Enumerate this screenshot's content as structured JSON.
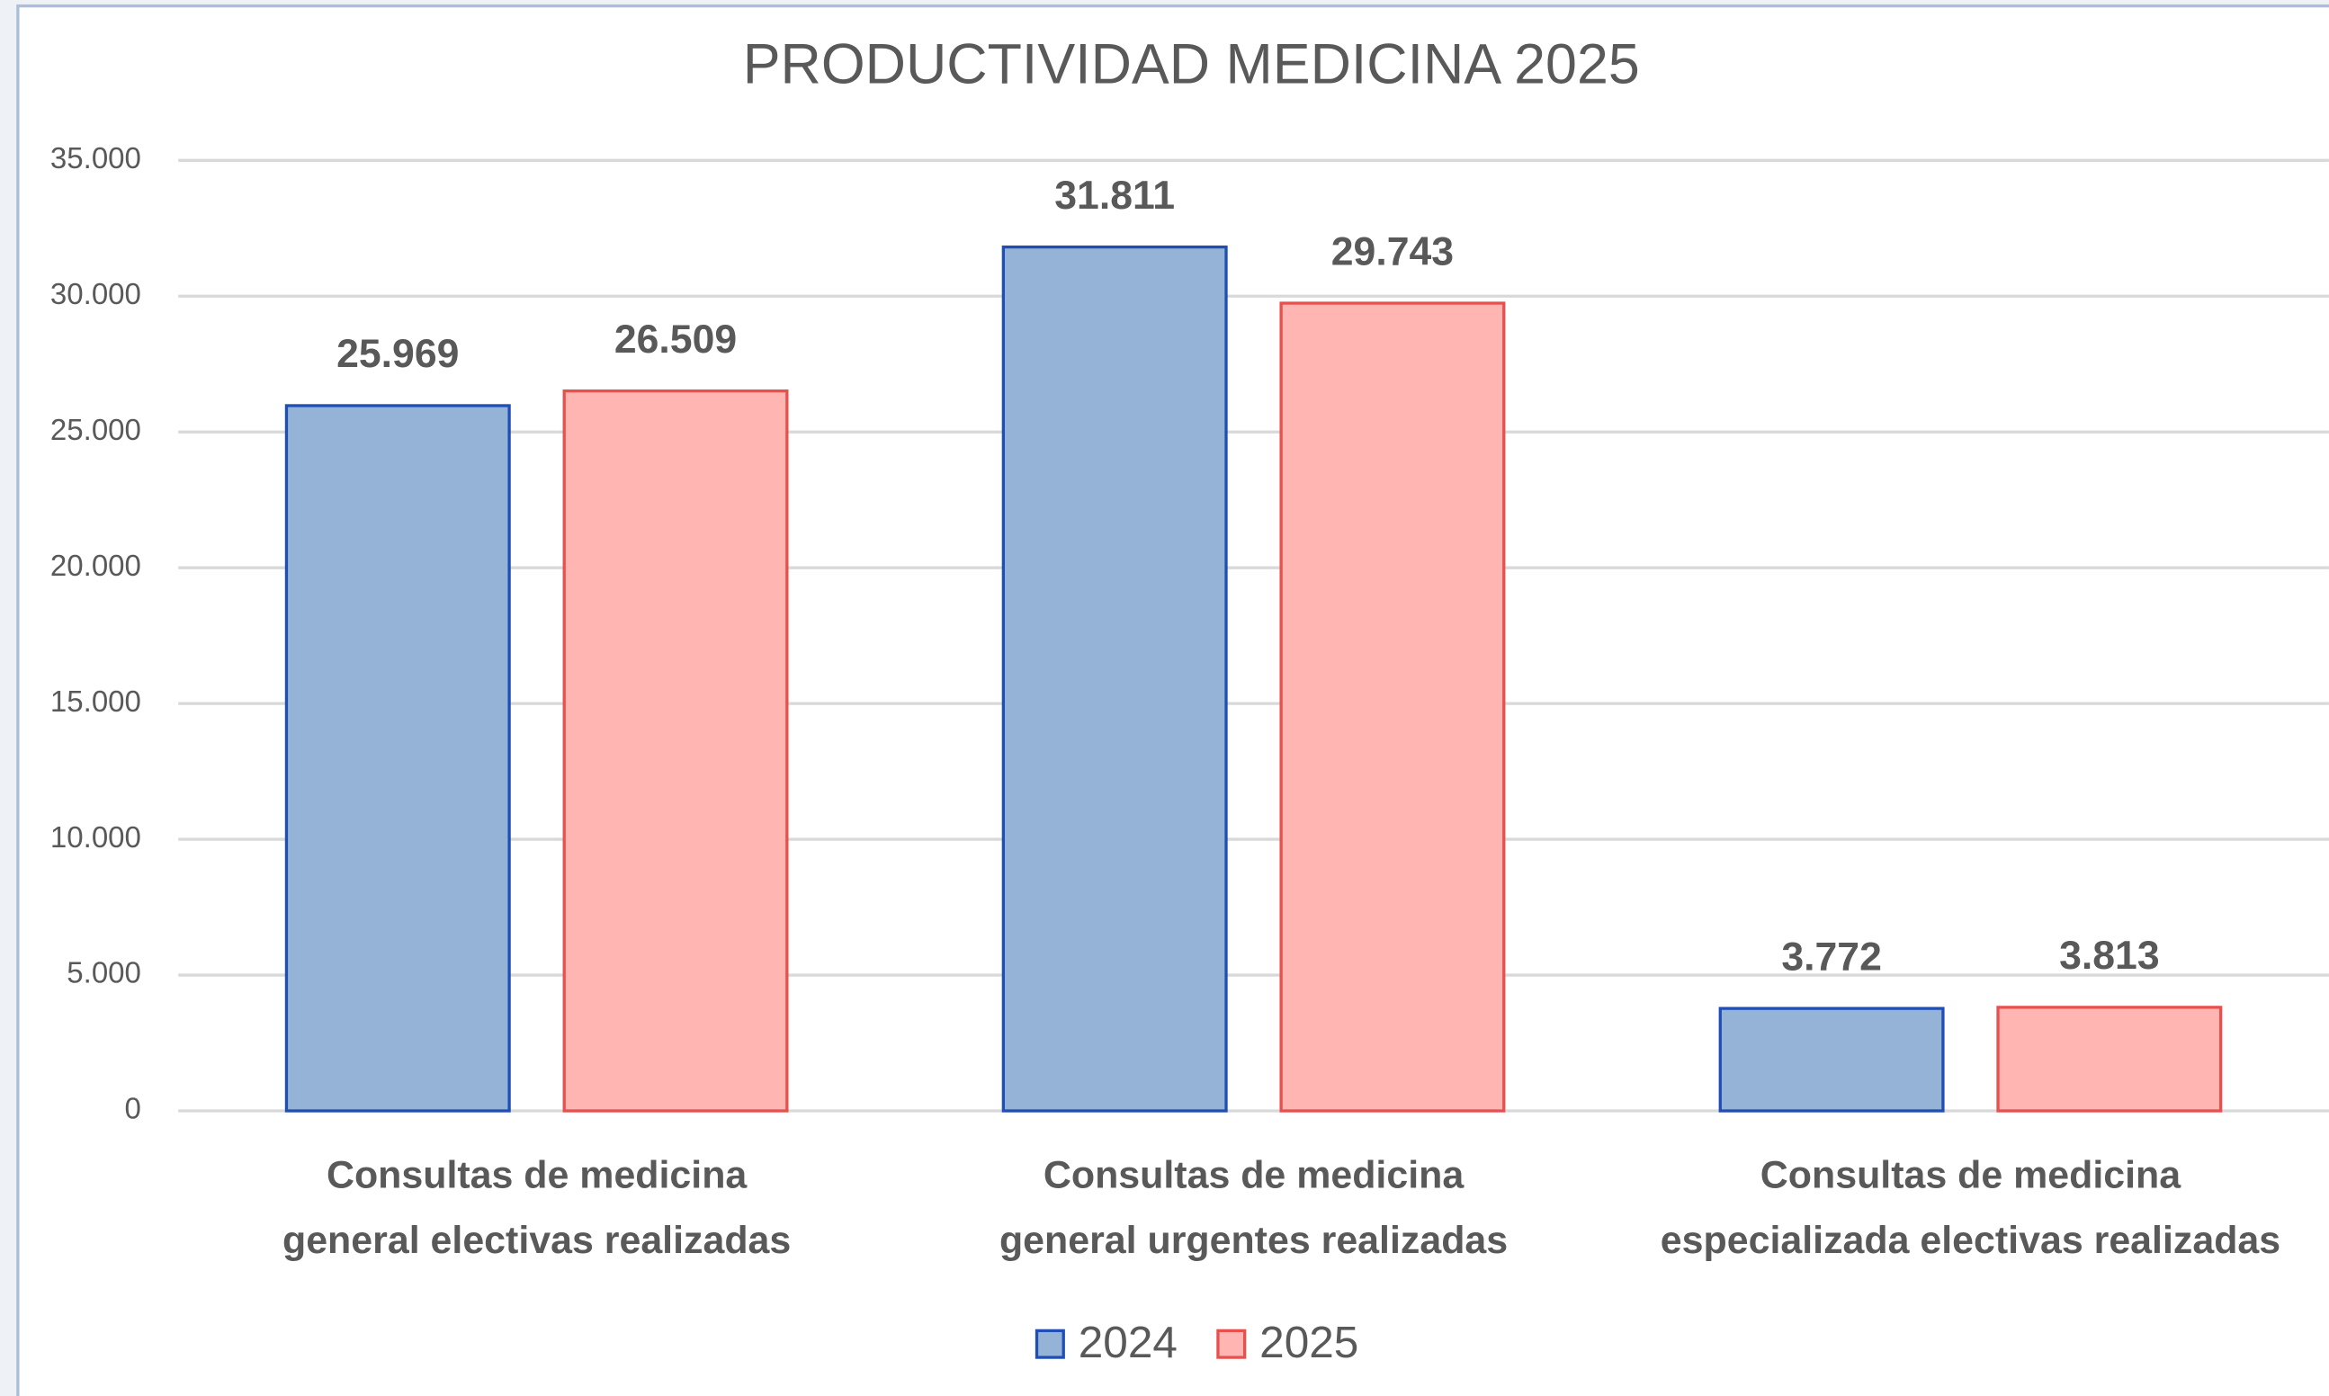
{
  "chart_data": {
    "type": "bar",
    "title": "PRODUCTIVIDAD MEDICINA 2025",
    "categories": [
      "Consultas de medicina general electivas realizadas",
      "Consultas de medicina general urgentes realizadas",
      "Consultas de medicina especializada electivas realizadas"
    ],
    "series": [
      {
        "name": "2024",
        "color": "#95b3d7",
        "edgecolor": "#1f4fb5",
        "values": [
          25969,
          31811,
          3772
        ],
        "value_labels": [
          "25.969",
          "31.811",
          "3.772"
        ]
      },
      {
        "name": "2025",
        "color": "#ffb6b3",
        "edgecolor": "#e8504e",
        "values": [
          26509,
          29743,
          3813
        ],
        "value_labels": [
          "26.509",
          "29.743",
          "3.813"
        ]
      }
    ],
    "ylim": [
      0,
      35000
    ],
    "yticks": [
      0,
      {
        "value": 5000,
        "label": "5.000"
      },
      {
        "value": 10000,
        "label": "10.000"
      },
      {
        "value": 15000,
        "label": "15.000"
      },
      {
        "value": 20000,
        "label": "20.000"
      },
      {
        "value": 25000,
        "label": "25.000"
      },
      {
        "value": 30000,
        "label": "30.000"
      },
      {
        "value": 35000,
        "label": "35.000"
      }
    ],
    "grid": true,
    "legend": "bottom"
  }
}
